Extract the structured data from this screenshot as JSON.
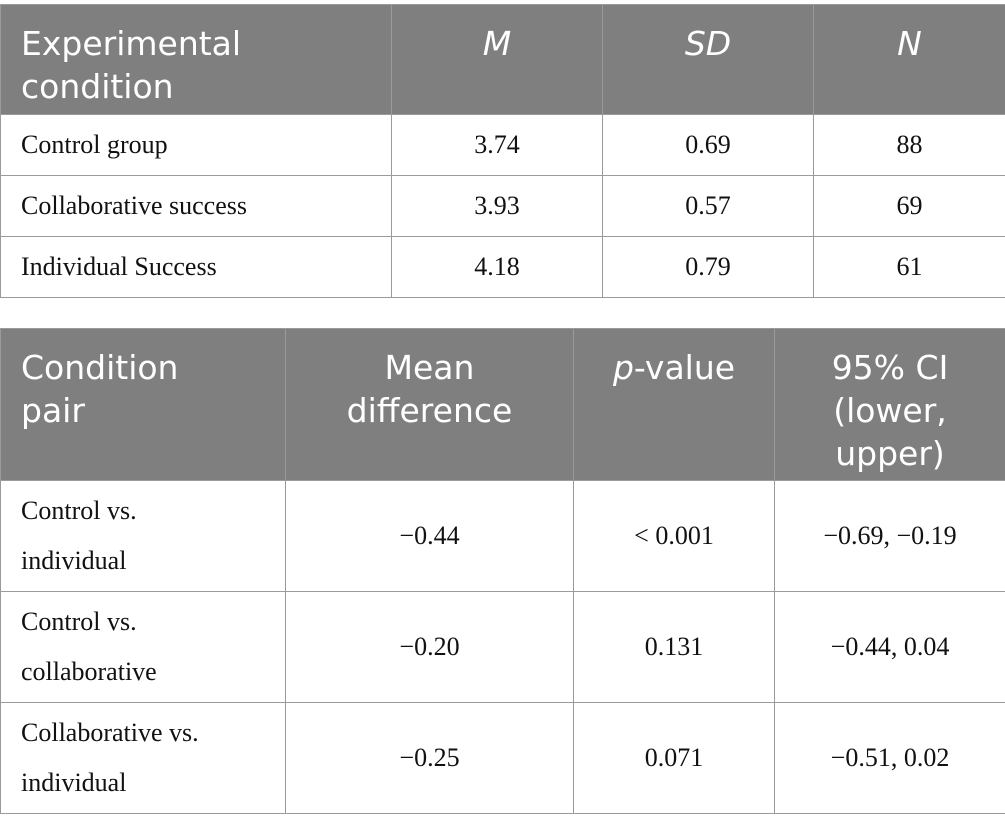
{
  "table1": {
    "headers": {
      "condition": "Experimental condition",
      "m": "M",
      "sd": "SD",
      "n": "N"
    },
    "rows": [
      {
        "condition": "Control group",
        "m": "3.74",
        "sd": "0.69",
        "n": "88"
      },
      {
        "condition": "Collaborative success",
        "m": "3.93",
        "sd": "0.57",
        "n": "69"
      },
      {
        "condition": "Individual Success",
        "m": "4.18",
        "sd": "0.79",
        "n": "61"
      }
    ]
  },
  "table2": {
    "headers": {
      "pair": "Condition pair",
      "diff": "Mean difference",
      "p_italic": "p",
      "p_rest": "-value",
      "ci": "95% CI (lower, upper)"
    },
    "rows": [
      {
        "pair": "Control vs. individual",
        "diff": "−0.44",
        "p": "< 0.001",
        "ci": "−0.69, −0.19"
      },
      {
        "pair": "Control vs. collaborative",
        "diff": "−0.20",
        "p": "0.131",
        "ci": "−0.44, 0.04"
      },
      {
        "pair": "Collaborative vs. individual",
        "diff": "−0.25",
        "p": "0.071",
        "ci": "−0.51, 0.02"
      }
    ]
  }
}
